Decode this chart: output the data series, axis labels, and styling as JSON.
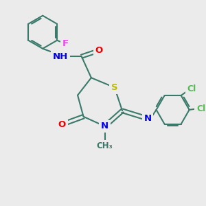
{
  "bg_color": "#ebebeb",
  "bond_color": "#3a7a6a",
  "bond_width": 1.5,
  "atom_colors": {
    "N": "#0000ee",
    "O": "#ee0000",
    "S": "#bbbb00",
    "Cl": "#55bb55",
    "F": "#ee44ee",
    "C": "#3a7a6a"
  },
  "font_size": 9.5
}
